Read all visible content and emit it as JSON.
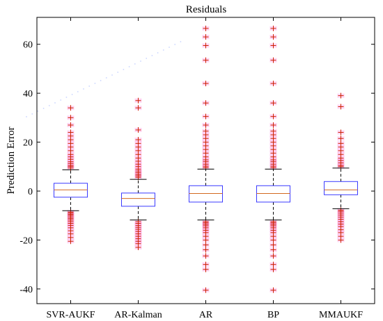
{
  "chart_data": {
    "type": "boxplot",
    "title": "Residuals",
    "xlabel": "",
    "ylabel": "Prediction Error",
    "ylim": [
      -46,
      71
    ],
    "yticks": [
      -40,
      -20,
      0,
      20,
      40,
      60
    ],
    "grid": false,
    "legend": "none",
    "categories": [
      "SVR-AUKF",
      "AR-Kalman",
      "AR",
      "BP",
      "MMAUKF"
    ],
    "boxes": [
      {
        "name": "SVR-AUKF",
        "q1": -2.5,
        "median": 0.5,
        "q3": 3.2,
        "whisker_low": -8.0,
        "whisker_high": 8.7,
        "outliers": [
          34,
          30,
          27,
          24,
          22.5,
          21,
          19.5,
          18,
          16.5,
          15,
          14,
          13,
          12,
          11.3,
          10.5,
          10,
          9.4,
          -8.6,
          -9,
          -9.5,
          -10,
          -10.6,
          -11.2,
          -11.8,
          -12.5,
          -13.2,
          -14,
          -15,
          -16.2,
          -17.5,
          -19,
          -20.5
        ]
      },
      {
        "name": "AR-Kalman",
        "q1": -6.2,
        "median": -3.0,
        "q3": -0.8,
        "whisker_low": -11.8,
        "whisker_high": 4.8,
        "outliers": [
          37,
          34,
          25,
          21,
          19.5,
          18,
          16.5,
          15,
          13.5,
          12.2,
          11,
          10,
          9,
          8.2,
          7.5,
          6.8,
          6.2,
          5.6,
          -12.5,
          -13.2,
          -14,
          -14.8,
          -15.6,
          -16.5,
          -17.5,
          -18.5,
          -19.5,
          -20.5,
          -21.5,
          -23
        ]
      },
      {
        "name": "AR",
        "q1": -4.5,
        "median": -1.0,
        "q3": 2.2,
        "whisker_low": -11.8,
        "whisker_high": 9.0,
        "outliers": [
          66.5,
          63,
          59.5,
          53.5,
          44,
          36,
          30.5,
          27,
          24.5,
          23,
          21.5,
          20,
          18.5,
          17,
          15.5,
          14,
          12.8,
          12,
          11,
          10.2,
          9.6,
          -12.5,
          -13,
          -13.6,
          -14.2,
          -15,
          -16,
          -17,
          -18.5,
          -20,
          -22,
          -24,
          -26.5,
          -30,
          -32,
          -40.5
        ]
      },
      {
        "name": "BP",
        "q1": -4.5,
        "median": -1.0,
        "q3": 2.2,
        "whisker_low": -11.8,
        "whisker_high": 9.0,
        "outliers": [
          66.5,
          63,
          59.5,
          53.5,
          44,
          36,
          30.5,
          27,
          24.5,
          23,
          21.5,
          20,
          18.5,
          17,
          15.5,
          14,
          12.8,
          12,
          11,
          10.2,
          9.6,
          -12.5,
          -13,
          -13.6,
          -14.2,
          -15,
          -16,
          -17,
          -18.5,
          -20,
          -22,
          -24,
          -26.5,
          -30,
          -32,
          -40.5
        ]
      },
      {
        "name": "MMAUKF",
        "q1": -1.5,
        "median": 0.5,
        "q3": 3.9,
        "whisker_low": -7.2,
        "whisker_high": 9.4,
        "outliers": [
          39,
          34.5,
          24,
          21.5,
          19.5,
          18,
          16.5,
          15,
          13.5,
          12.5,
          11.5,
          10.5,
          10,
          -7.8,
          -8.3,
          -9,
          -9.8,
          -10.6,
          -11.5,
          -12.5,
          -13.5,
          -14.5,
          -15.8,
          -17,
          -18.5,
          -20
        ]
      }
    ],
    "colors": {
      "box": "#3a3aff",
      "median": "#d2691e",
      "whisker": "#000000",
      "outlier": "#cc2200",
      "outlier_glow": "#ff88dd"
    }
  }
}
